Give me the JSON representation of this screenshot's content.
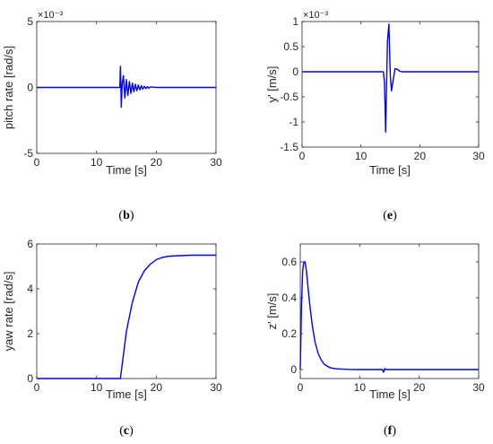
{
  "chart_data": [
    {
      "id": "b",
      "type": "line",
      "caption": "(b)",
      "xlabel": "Time [s]",
      "ylabel": "pitch rate [rad/s]",
      "exponent": "×10⁻³",
      "xlim": [
        0,
        30
      ],
      "ylim": [
        -5,
        5
      ],
      "xticks": [
        0,
        10,
        20,
        30
      ],
      "yticks": [
        -5,
        0,
        5
      ],
      "color": "#0000ff",
      "x": [
        0,
        13.9,
        14.0,
        14.15,
        14.3,
        14.5,
        14.75,
        15.0,
        15.25,
        15.5,
        15.75,
        16.0,
        16.25,
        16.5,
        16.75,
        17.0,
        17.25,
        17.5,
        17.75,
        18.0,
        18.25,
        18.5,
        18.75,
        19.0,
        19.5,
        20.0,
        30
      ],
      "y": [
        0,
        0,
        1.6,
        -1.5,
        0.3,
        0.9,
        -0.8,
        0.6,
        -0.6,
        0.45,
        -0.45,
        0.33,
        -0.33,
        0.25,
        -0.25,
        0.18,
        -0.18,
        0.13,
        -0.13,
        0.09,
        -0.09,
        0.06,
        -0.06,
        0.04,
        0.02,
        0,
        0
      ]
    },
    {
      "id": "e",
      "type": "line",
      "caption": "(e)",
      "xlabel": "Time [s]",
      "ylabel": "y' [m/s]",
      "exponent": "×10⁻³",
      "xlim": [
        0,
        30
      ],
      "ylim": [
        -1.5,
        1
      ],
      "xticks": [
        0,
        10,
        20,
        30
      ],
      "yticks": [
        -1.5,
        -1,
        -0.5,
        0,
        0.5,
        1
      ],
      "color": "#0000ff",
      "x": [
        0,
        13.8,
        14.0,
        14.2,
        14.35,
        14.5,
        14.75,
        15.0,
        15.2,
        15.5,
        15.8,
        16.2,
        16.6,
        17.0,
        30
      ],
      "y": [
        0,
        0,
        -0.2,
        -1.2,
        -0.3,
        0.6,
        0.95,
        -0.1,
        -0.38,
        -0.15,
        0.06,
        0.05,
        0.01,
        0,
        0
      ]
    },
    {
      "id": "c",
      "type": "line",
      "caption": "(c)",
      "xlabel": "Time [s]",
      "ylabel": "yaw rate [rad/s]",
      "xlim": [
        0,
        30
      ],
      "ylim": [
        0,
        6
      ],
      "xticks": [
        0,
        10,
        20,
        30
      ],
      "yticks": [
        0,
        2,
        4,
        6
      ],
      "color": "#0000ff",
      "x": [
        0,
        14.0,
        15,
        16,
        17,
        18,
        19,
        20,
        21,
        22,
        24,
        26,
        30
      ],
      "y": [
        0,
        0,
        2.1,
        3.4,
        4.3,
        4.8,
        5.1,
        5.3,
        5.4,
        5.45,
        5.48,
        5.5,
        5.5
      ]
    },
    {
      "id": "f",
      "type": "line",
      "caption": "(f)",
      "xlabel": "Time [s]",
      "ylabel": "z' [m/s]",
      "xlim": [
        0,
        30
      ],
      "ylim": [
        -0.05,
        0.7
      ],
      "xticks": [
        0,
        10,
        20,
        30
      ],
      "yticks": [
        0,
        0.2,
        0.4,
        0.6
      ],
      "color": "#0000ff",
      "x": [
        0,
        0.2,
        0.4,
        0.6,
        0.8,
        1.0,
        1.3,
        1.6,
        2.0,
        2.5,
        3.0,
        3.5,
        4.0,
        5.0,
        6.0,
        8.0,
        10.0,
        13.8,
        14.0,
        14.2,
        14.4,
        30
      ],
      "y": [
        0,
        0.35,
        0.55,
        0.6,
        0.6,
        0.56,
        0.46,
        0.36,
        0.25,
        0.15,
        0.09,
        0.055,
        0.03,
        0.01,
        0.004,
        0.001,
        0,
        0,
        -0.015,
        0.005,
        0,
        0
      ]
    }
  ]
}
